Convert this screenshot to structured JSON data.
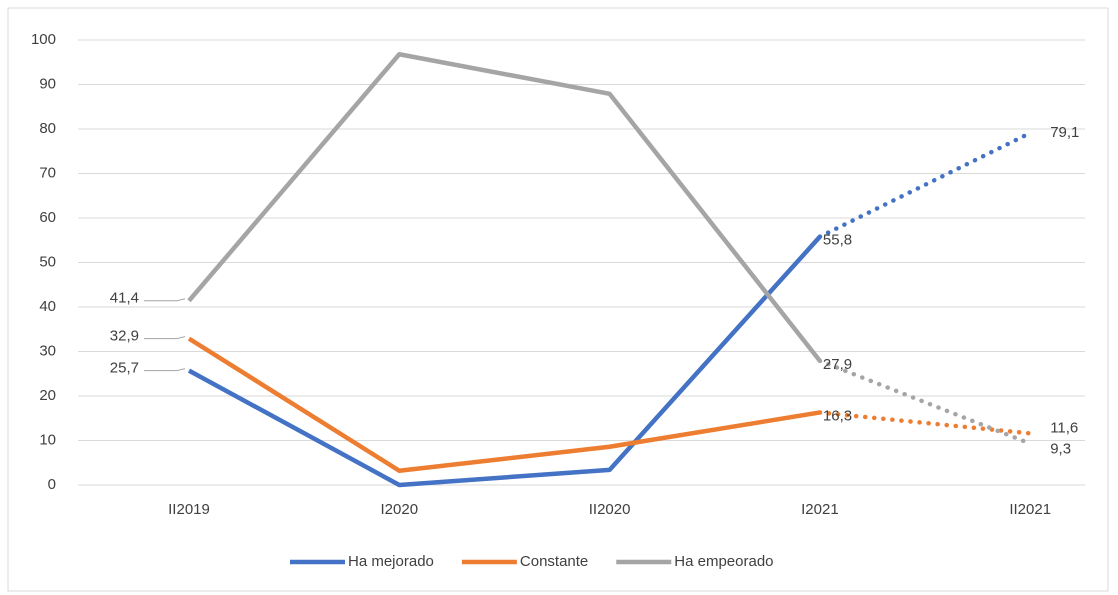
{
  "chart_data": {
    "type": "line",
    "categories": [
      "II2019",
      "I2020",
      "II2020",
      "I2021",
      "II2021"
    ],
    "series": [
      {
        "name": "Ha mejorado",
        "color": "#4472c4",
        "values": [
          25.7,
          0,
          3.4,
          55.8,
          79.1
        ],
        "value_labels": [
          "25,7",
          null,
          null,
          "55,8",
          "79,1"
        ]
      },
      {
        "name": "Constante",
        "color": "#ed7d31",
        "values": [
          32.9,
          3.2,
          8.6,
          16.3,
          11.6
        ],
        "value_labels": [
          "32,9",
          null,
          null,
          "16,3",
          "11,6"
        ]
      },
      {
        "name": "Ha empeorado",
        "color": "#a5a5a5",
        "values": [
          41.4,
          96.8,
          87.9,
          27.9,
          9.3
        ],
        "value_labels": [
          "41,4",
          null,
          null,
          "27,9",
          "9,3"
        ]
      }
    ],
    "ylim": [
      0,
      100
    ],
    "yticks": [
      0,
      10,
      20,
      30,
      40,
      50,
      60,
      70,
      80,
      90,
      100
    ],
    "grid": true,
    "legend": "bottom"
  }
}
